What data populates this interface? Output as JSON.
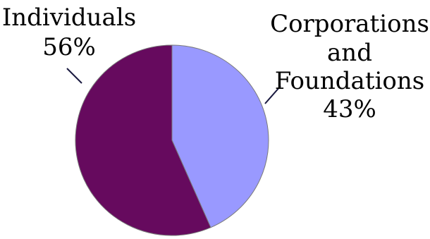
{
  "chart_data": {
    "type": "pie",
    "slices": [
      {
        "key": "individuals",
        "label_lines": [
          "Individuals",
          "56%"
        ],
        "value": 56,
        "color": "#660a5e"
      },
      {
        "key": "corporations",
        "label_lines": [
          "Corporations",
          "and",
          "Foundations",
          "43%"
        ],
        "value": 43,
        "color": "#9999ff"
      }
    ],
    "legend": "none"
  }
}
